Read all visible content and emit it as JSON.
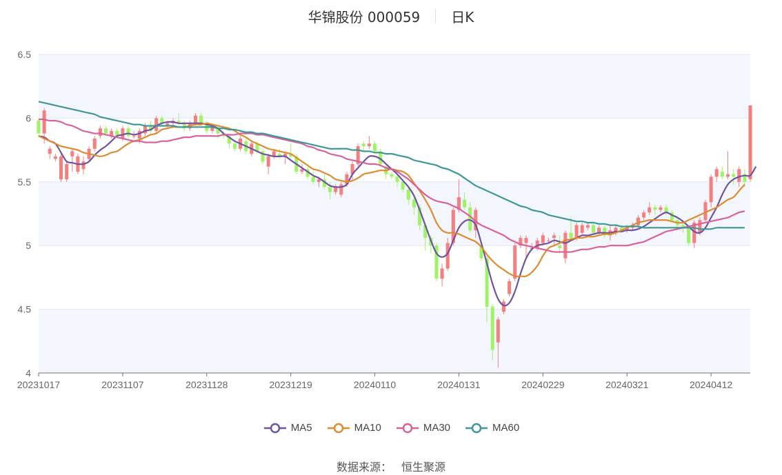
{
  "header": {
    "stock": "华锦股份 000059",
    "period": "日K"
  },
  "footer": {
    "source_label": "数据来源：",
    "source_name": "恒生聚源"
  },
  "chart_data": {
    "type": "candlestick",
    "ylim": [
      4,
      6.5
    ],
    "y_ticks": [
      "4",
      "4.5",
      "5",
      "5.5",
      "6",
      "6.5"
    ],
    "x_ticks": [
      {
        "index": 0,
        "label": "20231017"
      },
      {
        "index": 15,
        "label": "20231107"
      },
      {
        "index": 30,
        "label": "20231128"
      },
      {
        "index": 45,
        "label": "20231219"
      },
      {
        "index": 60,
        "label": "20240110"
      },
      {
        "index": 75,
        "label": "20240131"
      },
      {
        "index": 90,
        "label": "20240229"
      },
      {
        "index": 105,
        "label": "20240321"
      },
      {
        "index": 120,
        "label": "20240412"
      }
    ],
    "colors": {
      "up": "#f47f7f",
      "down": "#9ff466",
      "grid": "#e3e8f5",
      "band": "#f4f6fd"
    },
    "candles": [
      [
        5.98,
        5.88,
        6.0,
        5.85
      ],
      [
        5.88,
        6.06,
        6.08,
        5.8
      ],
      [
        5.72,
        5.76,
        5.78,
        5.68
      ],
      [
        5.68,
        5.7,
        5.72,
        5.66
      ],
      [
        5.52,
        5.7,
        5.72,
        5.5
      ],
      [
        5.52,
        5.64,
        5.66,
        5.5
      ],
      [
        5.7,
        5.74,
        5.76,
        5.58
      ],
      [
        5.58,
        5.7,
        5.72,
        5.56
      ],
      [
        5.6,
        5.66,
        5.7,
        5.56
      ],
      [
        5.68,
        5.76,
        5.78,
        5.66
      ],
      [
        5.76,
        5.84,
        5.86,
        5.74
      ],
      [
        5.86,
        5.92,
        5.94,
        5.84
      ],
      [
        5.92,
        5.88,
        5.94,
        5.86
      ],
      [
        5.86,
        5.9,
        5.92,
        5.84
      ],
      [
        5.9,
        5.86,
        5.92,
        5.84
      ],
      [
        5.84,
        5.92,
        5.94,
        5.82
      ],
      [
        5.92,
        5.86,
        5.94,
        5.84
      ],
      [
        5.86,
        5.86,
        5.9,
        5.84
      ],
      [
        5.84,
        5.9,
        5.92,
        5.8
      ],
      [
        5.88,
        5.94,
        5.96,
        5.86
      ],
      [
        5.94,
        5.9,
        5.98,
        5.88
      ],
      [
        5.9,
        6.0,
        6.02,
        5.88
      ],
      [
        6.0,
        5.96,
        6.02,
        5.94
      ],
      [
        5.94,
        5.96,
        5.98,
        5.92
      ],
      [
        5.96,
        5.98,
        6.0,
        5.94
      ],
      [
        5.98,
        5.96,
        6.04,
        5.94
      ],
      [
        5.96,
        5.92,
        5.98,
        5.9
      ],
      [
        5.92,
        5.96,
        5.98,
        5.9
      ],
      [
        5.96,
        6.02,
        6.04,
        5.94
      ],
      [
        6.02,
        5.96,
        6.04,
        5.94
      ],
      [
        5.96,
        5.9,
        5.98,
        5.88
      ],
      [
        5.9,
        5.94,
        5.96,
        5.88
      ],
      [
        5.92,
        5.88,
        5.94,
        5.84
      ],
      [
        5.88,
        5.86,
        5.9,
        5.84
      ],
      [
        5.86,
        5.8,
        5.88,
        5.76
      ],
      [
        5.8,
        5.76,
        5.82,
        5.74
      ],
      [
        5.76,
        5.84,
        5.86,
        5.74
      ],
      [
        5.82,
        5.74,
        5.84,
        5.72
      ],
      [
        5.72,
        5.8,
        5.82,
        5.7
      ],
      [
        5.8,
        5.74,
        5.82,
        5.72
      ],
      [
        5.74,
        5.66,
        5.76,
        5.64
      ],
      [
        5.62,
        5.7,
        5.72,
        5.56
      ],
      [
        5.7,
        5.74,
        5.76,
        5.68
      ],
      [
        5.72,
        5.7,
        5.76,
        5.68
      ],
      [
        5.7,
        5.72,
        5.74,
        5.64
      ],
      [
        5.72,
        5.7,
        5.8,
        5.68
      ],
      [
        5.7,
        5.58,
        5.72,
        5.56
      ],
      [
        5.58,
        5.6,
        5.64,
        5.56
      ],
      [
        5.6,
        5.54,
        5.62,
        5.52
      ],
      [
        5.54,
        5.5,
        5.58,
        5.48
      ],
      [
        5.5,
        5.52,
        5.54,
        5.46
      ],
      [
        5.52,
        5.46,
        5.56,
        5.44
      ],
      [
        5.46,
        5.42,
        5.5,
        5.36
      ],
      [
        5.42,
        5.46,
        5.48,
        5.4
      ],
      [
        5.4,
        5.48,
        5.5,
        5.38
      ],
      [
        5.48,
        5.56,
        5.58,
        5.46
      ],
      [
        5.56,
        5.64,
        5.66,
        5.52
      ],
      [
        5.64,
        5.78,
        5.8,
        5.62
      ],
      [
        5.8,
        5.78,
        5.82,
        5.74
      ],
      [
        5.78,
        5.8,
        5.86,
        5.76
      ],
      [
        5.8,
        5.74,
        5.82,
        5.72
      ],
      [
        5.74,
        5.64,
        5.76,
        5.62
      ],
      [
        5.62,
        5.56,
        5.64,
        5.52
      ],
      [
        5.56,
        5.54,
        5.58,
        5.52
      ],
      [
        5.54,
        5.5,
        5.56,
        5.46
      ],
      [
        5.5,
        5.44,
        5.52,
        5.42
      ],
      [
        5.44,
        5.36,
        5.46,
        5.32
      ],
      [
        5.36,
        5.3,
        5.38,
        5.24
      ],
      [
        5.3,
        5.16,
        5.32,
        5.12
      ],
      [
        5.16,
        5.06,
        5.18,
        4.96
      ],
      [
        5.06,
        5.0,
        5.08,
        4.94
      ],
      [
        5.0,
        4.74,
        5.02,
        4.72
      ],
      [
        4.74,
        4.82,
        4.86,
        4.68
      ],
      [
        4.82,
        5.02,
        5.06,
        4.8
      ],
      [
        5.02,
        5.28,
        5.3,
        5.0
      ],
      [
        5.28,
        5.38,
        5.52,
        5.26
      ],
      [
        5.36,
        5.3,
        5.42,
        5.28
      ],
      [
        5.3,
        5.12,
        5.34,
        5.1
      ],
      [
        5.12,
        5.28,
        5.3,
        5.06
      ],
      [
        5.0,
        4.9,
        5.02,
        4.88
      ],
      [
        4.9,
        4.52,
        4.92,
        4.4
      ],
      [
        4.52,
        4.18,
        4.54,
        4.1
      ],
      [
        4.24,
        4.42,
        4.44,
        4.04
      ],
      [
        4.48,
        4.56,
        4.58,
        4.46
      ],
      [
        4.62,
        4.72,
        4.74,
        4.6
      ],
      [
        4.74,
        5.0,
        5.02,
        4.72
      ],
      [
        5.0,
        5.06,
        5.08,
        4.98
      ],
      [
        5.02,
        5.06,
        5.08,
        4.9
      ],
      [
        4.98,
        4.98,
        5.02,
        4.96
      ],
      [
        4.98,
        5.04,
        5.06,
        4.96
      ],
      [
        5.02,
        5.08,
        5.1,
        5.0
      ],
      [
        5.04,
        5.04,
        5.06,
        5.02
      ],
      [
        5.06,
        5.08,
        5.1,
        5.0
      ],
      [
        5.0,
        4.98,
        5.08,
        4.94
      ],
      [
        4.9,
        5.1,
        5.12,
        4.86
      ],
      [
        5.1,
        5.06,
        5.22,
        5.04
      ],
      [
        5.06,
        5.16,
        5.18,
        5.04
      ],
      [
        5.1,
        5.16,
        5.18,
        5.08
      ],
      [
        5.14,
        5.16,
        5.18,
        5.12
      ],
      [
        5.16,
        5.1,
        5.18,
        5.08
      ],
      [
        5.1,
        5.14,
        5.16,
        5.08
      ],
      [
        5.14,
        5.08,
        5.16,
        5.06
      ],
      [
        5.08,
        5.12,
        5.16,
        5.04
      ],
      [
        5.1,
        5.14,
        5.16,
        5.08
      ],
      [
        5.14,
        5.12,
        5.16,
        5.1
      ],
      [
        5.12,
        5.14,
        5.16,
        5.1
      ],
      [
        5.14,
        5.16,
        5.18,
        5.12
      ],
      [
        5.16,
        5.22,
        5.24,
        5.14
      ],
      [
        5.22,
        5.26,
        5.28,
        5.2
      ],
      [
        5.26,
        5.3,
        5.34,
        5.24
      ],
      [
        5.3,
        5.28,
        5.32,
        5.24
      ],
      [
        5.28,
        5.3,
        5.32,
        5.26
      ],
      [
        5.3,
        5.26,
        5.32,
        5.24
      ],
      [
        5.26,
        5.2,
        5.28,
        5.18
      ],
      [
        5.2,
        5.16,
        5.22,
        5.12
      ],
      [
        5.16,
        5.14,
        5.18,
        5.1
      ],
      [
        5.14,
        5.02,
        5.16,
        5.0
      ],
      [
        5.02,
        5.18,
        5.2,
        4.98
      ],
      [
        5.1,
        5.2,
        5.22,
        5.08
      ],
      [
        5.2,
        5.34,
        5.36,
        5.18
      ],
      [
        5.34,
        5.54,
        5.56,
        5.3
      ],
      [
        5.54,
        5.6,
        5.62,
        5.5
      ],
      [
        5.58,
        5.54,
        5.62,
        5.52
      ],
      [
        5.54,
        5.56,
        5.74,
        5.52
      ],
      [
        5.56,
        5.54,
        5.6,
        5.48
      ],
      [
        5.5,
        5.6,
        5.62,
        5.46
      ],
      [
        5.56,
        5.5,
        5.6,
        5.46
      ],
      [
        5.52,
        6.1,
        6.1,
        5.5
      ]
    ],
    "series": [
      {
        "name": "MA5",
        "color": "#6e52a3",
        "values": [
          5.86,
          5.85,
          5.82,
          5.8,
          5.73,
          5.66,
          5.65,
          5.64,
          5.64,
          5.66,
          5.71,
          5.75,
          5.78,
          5.82,
          5.86,
          5.87,
          5.88,
          5.87,
          5.88,
          5.9,
          5.91,
          5.94,
          5.96,
          5.97,
          5.97,
          5.96,
          5.96,
          5.96,
          5.96,
          5.96,
          5.95,
          5.94,
          5.92,
          5.88,
          5.85,
          5.82,
          5.8,
          5.78,
          5.76,
          5.74,
          5.72,
          5.71,
          5.7,
          5.7,
          5.7,
          5.67,
          5.64,
          5.61,
          5.58,
          5.55,
          5.53,
          5.5,
          5.47,
          5.46,
          5.46,
          5.48,
          5.56,
          5.61,
          5.66,
          5.7,
          5.7,
          5.68,
          5.64,
          5.6,
          5.56,
          5.51,
          5.46,
          5.39,
          5.28,
          5.16,
          5.04,
          4.94,
          4.91,
          4.94,
          5.04,
          5.14,
          5.19,
          5.2,
          5.16,
          5.02,
          4.86,
          4.7,
          4.58,
          4.53,
          4.55,
          4.64,
          4.78,
          4.9,
          4.97,
          5.0,
          5.01,
          5.02,
          5.04,
          5.03,
          5.02,
          5.04,
          5.06,
          5.08,
          5.08,
          5.09,
          5.1,
          5.1,
          5.1,
          5.11,
          5.11,
          5.12,
          5.12,
          5.13,
          5.15,
          5.18,
          5.21,
          5.24,
          5.26,
          5.24,
          5.22,
          5.19,
          5.15,
          5.11,
          5.1,
          5.14,
          5.22,
          5.3,
          5.4,
          5.48,
          5.52,
          5.54,
          5.55,
          5.55,
          5.62
        ]
      },
      {
        "name": "MA10",
        "color": "#e08a2e",
        "values": [
          5.86,
          5.84,
          5.82,
          5.8,
          5.78,
          5.77,
          5.76,
          5.75,
          5.73,
          5.72,
          5.71,
          5.7,
          5.71,
          5.73,
          5.74,
          5.77,
          5.8,
          5.82,
          5.83,
          5.85,
          5.87,
          5.88,
          5.91,
          5.92,
          5.93,
          5.93,
          5.93,
          5.94,
          5.95,
          5.95,
          5.96,
          5.95,
          5.94,
          5.93,
          5.92,
          5.9,
          5.87,
          5.85,
          5.82,
          5.8,
          5.78,
          5.76,
          5.75,
          5.74,
          5.73,
          5.72,
          5.69,
          5.66,
          5.63,
          5.6,
          5.59,
          5.57,
          5.55,
          5.52,
          5.51,
          5.5,
          5.51,
          5.53,
          5.56,
          5.57,
          5.58,
          5.59,
          5.59,
          5.6,
          5.59,
          5.58,
          5.55,
          5.49,
          5.43,
          5.36,
          5.28,
          5.18,
          5.12,
          5.1,
          5.1,
          5.09,
          5.07,
          5.05,
          5.03,
          4.99,
          4.93,
          4.88,
          4.84,
          4.81,
          4.78,
          4.76,
          4.76,
          4.76,
          4.79,
          4.84,
          4.92,
          4.98,
          5.0,
          5.02,
          5.04,
          5.05,
          5.06,
          5.06,
          5.07,
          5.07,
          5.08,
          5.09,
          5.09,
          5.1,
          5.12,
          5.14,
          5.16,
          5.18,
          5.19,
          5.2,
          5.2,
          5.2,
          5.2,
          5.19,
          5.18,
          5.18,
          5.2,
          5.22,
          5.24,
          5.26,
          5.28,
          5.3,
          5.33,
          5.36,
          5.38,
          5.43,
          5.48
        ]
      },
      {
        "name": "MA30",
        "color": "#d9609d",
        "values": [
          5.99,
          5.99,
          5.98,
          5.98,
          5.97,
          5.95,
          5.94,
          5.92,
          5.9,
          5.89,
          5.88,
          5.88,
          5.87,
          5.86,
          5.85,
          5.84,
          5.83,
          5.82,
          5.82,
          5.81,
          5.81,
          5.81,
          5.82,
          5.82,
          5.83,
          5.84,
          5.85,
          5.85,
          5.86,
          5.86,
          5.86,
          5.86,
          5.86,
          5.87,
          5.87,
          5.87,
          5.88,
          5.88,
          5.88,
          5.87,
          5.87,
          5.86,
          5.85,
          5.84,
          5.83,
          5.82,
          5.81,
          5.8,
          5.78,
          5.77,
          5.75,
          5.74,
          5.72,
          5.71,
          5.7,
          5.68,
          5.67,
          5.66,
          5.65,
          5.64,
          5.64,
          5.63,
          5.61,
          5.6,
          5.58,
          5.55,
          5.52,
          5.48,
          5.44,
          5.4,
          5.37,
          5.35,
          5.34,
          5.33,
          5.31,
          5.29,
          5.26,
          5.23,
          5.19,
          5.16,
          5.14,
          5.12,
          5.1,
          5.08,
          5.05,
          5.03,
          5.01,
          5.0,
          4.99,
          4.98,
          4.97,
          4.96,
          4.95,
          4.95,
          4.95,
          4.95,
          4.96,
          4.97,
          4.97,
          4.98,
          4.99,
          4.99,
          5.0,
          5.0,
          5.0,
          5.0,
          5.01,
          5.02,
          5.03,
          5.05,
          5.07,
          5.09,
          5.11,
          5.12,
          5.13,
          5.14,
          5.15,
          5.16,
          5.17,
          5.18,
          5.19,
          5.2,
          5.21,
          5.22,
          5.24,
          5.26,
          5.27
        ]
      },
      {
        "name": "MA60",
        "color": "#3d9797",
        "values": [
          6.13,
          6.12,
          6.11,
          6.1,
          6.09,
          6.08,
          6.07,
          6.06,
          6.05,
          6.04,
          6.03,
          6.01,
          6.0,
          5.99,
          5.98,
          5.97,
          5.96,
          5.95,
          5.95,
          5.94,
          5.94,
          5.94,
          5.94,
          5.94,
          5.94,
          5.93,
          5.93,
          5.93,
          5.93,
          5.93,
          5.93,
          5.93,
          5.92,
          5.92,
          5.91,
          5.91,
          5.9,
          5.89,
          5.89,
          5.88,
          5.88,
          5.87,
          5.86,
          5.85,
          5.84,
          5.83,
          5.82,
          5.81,
          5.8,
          5.79,
          5.78,
          5.77,
          5.76,
          5.76,
          5.76,
          5.76,
          5.75,
          5.75,
          5.74,
          5.74,
          5.73,
          5.73,
          5.72,
          5.72,
          5.71,
          5.7,
          5.69,
          5.67,
          5.66,
          5.65,
          5.64,
          5.63,
          5.61,
          5.6,
          5.58,
          5.56,
          5.53,
          5.5,
          5.47,
          5.45,
          5.43,
          5.41,
          5.39,
          5.37,
          5.35,
          5.33,
          5.31,
          5.3,
          5.28,
          5.27,
          5.26,
          5.24,
          5.23,
          5.22,
          5.21,
          5.2,
          5.19,
          5.19,
          5.18,
          5.18,
          5.17,
          5.17,
          5.16,
          5.16,
          5.15,
          5.15,
          5.15,
          5.15,
          5.14,
          5.14,
          5.14,
          5.14,
          5.14,
          5.14,
          5.14,
          5.14,
          5.14,
          5.14,
          5.13,
          5.13,
          5.13,
          5.14,
          5.14,
          5.14,
          5.14,
          5.14,
          5.14
        ]
      }
    ],
    "legend": [
      "MA5",
      "MA10",
      "MA30",
      "MA60"
    ]
  }
}
